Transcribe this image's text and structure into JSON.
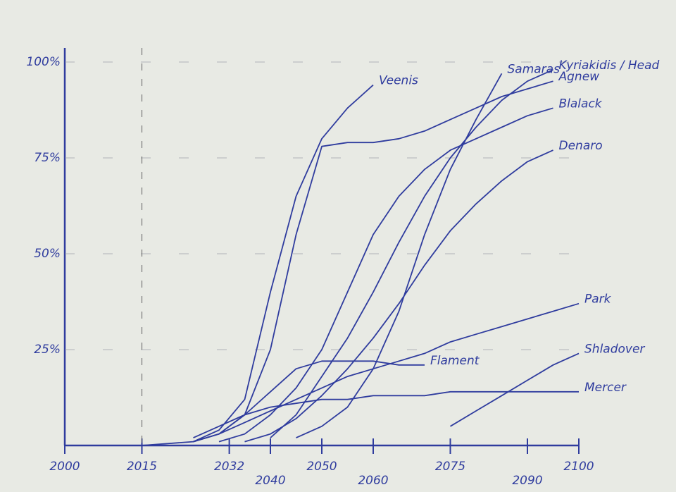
{
  "chart_data": {
    "type": "line",
    "x": [
      2000,
      2015,
      2025,
      2030,
      2035,
      2040,
      2045,
      2050,
      2055,
      2060,
      2065,
      2070,
      2075,
      2080,
      2085,
      2090,
      2095,
      2100
    ],
    "series": [
      {
        "name": "Veenis",
        "color": "#2f3c9e",
        "values": [
          null,
          null,
          1,
          4,
          12,
          40,
          65,
          80,
          88,
          94,
          null,
          null,
          null,
          null,
          null,
          null,
          null,
          null
        ]
      },
      {
        "name": "Samaras",
        "color": "#2f3c9e",
        "values": [
          null,
          null,
          null,
          null,
          null,
          null,
          2,
          5,
          10,
          20,
          35,
          55,
          72,
          85,
          97,
          null,
          null,
          null
        ]
      },
      {
        "name": "Kyriakidis / Head",
        "color": "#2f3c9e",
        "values": [
          null,
          null,
          null,
          null,
          null,
          2,
          8,
          18,
          28,
          40,
          53,
          65,
          75,
          83,
          90,
          95,
          98,
          null
        ]
      },
      {
        "name": "Agnew",
        "color": "#2f3c9e",
        "values": [
          0,
          0,
          1,
          3,
          8,
          25,
          55,
          78,
          79,
          79,
          80,
          82,
          85,
          88,
          91,
          93,
          95,
          null
        ]
      },
      {
        "name": "Blalack",
        "color": "#2f3c9e",
        "values": [
          null,
          null,
          null,
          1,
          3,
          8,
          15,
          25,
          40,
          55,
          65,
          72,
          77,
          80,
          83,
          86,
          88,
          null
        ]
      },
      {
        "name": "Denaro",
        "color": "#2f3c9e",
        "values": [
          null,
          null,
          null,
          null,
          1,
          3,
          7,
          13,
          20,
          28,
          37,
          47,
          56,
          63,
          69,
          74,
          77,
          null
        ]
      },
      {
        "name": "Park",
        "color": "#2f3c9e",
        "values": [
          null,
          null,
          1,
          3,
          6,
          9,
          12,
          15,
          18,
          20,
          22,
          24,
          27,
          29,
          31,
          33,
          35,
          37
        ]
      },
      {
        "name": "Flament",
        "color": "#2f3c9e",
        "values": [
          null,
          null,
          1,
          3,
          8,
          14,
          20,
          22,
          22,
          22,
          21,
          21,
          null,
          null,
          null,
          null,
          null,
          null
        ]
      },
      {
        "name": "Shladover",
        "color": "#2f3c9e",
        "values": [
          null,
          null,
          null,
          null,
          null,
          null,
          null,
          null,
          null,
          null,
          null,
          null,
          5,
          9,
          13,
          17,
          21,
          24
        ]
      },
      {
        "name": "Mercer",
        "color": "#2f3c9e",
        "values": [
          null,
          null,
          2,
          5,
          8,
          10,
          11,
          12,
          12,
          13,
          13,
          13,
          14,
          14,
          14,
          14,
          14,
          14
        ]
      }
    ],
    "xlim": [
      2000,
      2100
    ],
    "xticks": [
      2000,
      2015,
      2032,
      2040,
      2050,
      2060,
      2075,
      2090,
      2100
    ],
    "ylim": [
      0,
      100
    ],
    "yticks": [
      {
        "value": 25,
        "label": "25%"
      },
      {
        "value": 50,
        "label": "50%"
      },
      {
        "value": 75,
        "label": "75%"
      },
      {
        "value": 100,
        "label": "100%"
      }
    ],
    "grid": true
  }
}
